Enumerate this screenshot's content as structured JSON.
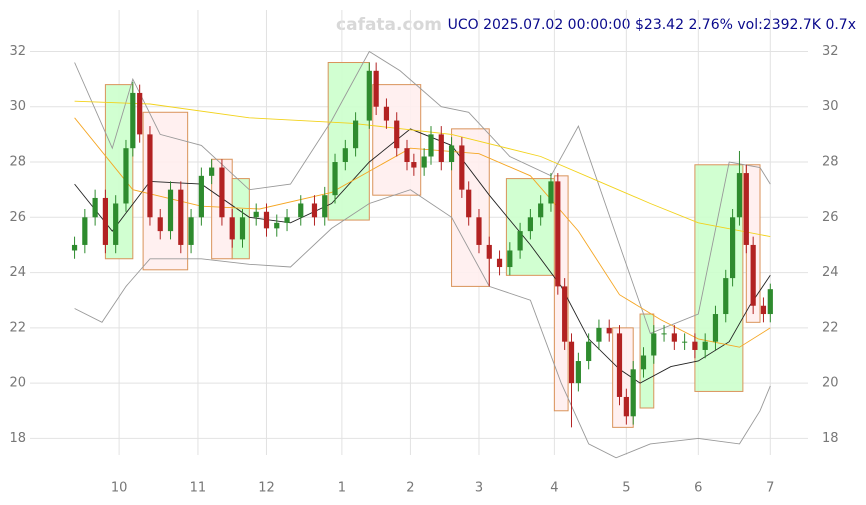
{
  "chart_data": {
    "type": "candlestick",
    "title": "UCO 2025.07.02 00:00:00 $23.42 2.76% vol:2392.7K 0.7x",
    "watermark": "cafata.com",
    "xlim": [
      -13,
      214
    ],
    "ylim": [
      17.4,
      33.5
    ],
    "xticks": [
      {
        "value": 13,
        "label": "10"
      },
      {
        "value": 36,
        "label": "11"
      },
      {
        "value": 56,
        "label": "12"
      },
      {
        "value": 78,
        "label": "1"
      },
      {
        "value": 98,
        "label": "2"
      },
      {
        "value": 118,
        "label": "3"
      },
      {
        "value": 140,
        "label": "4"
      },
      {
        "value": 161,
        "label": "5"
      },
      {
        "value": 182,
        "label": "6"
      },
      {
        "value": 203,
        "label": "7"
      }
    ],
    "yticks": [
      18,
      20,
      22,
      24,
      26,
      28,
      30,
      32
    ],
    "grid": true,
    "up_color": "#2e8b2e",
    "down_color": "#b22222",
    "x": [
      0,
      3,
      6,
      9,
      12,
      15,
      17,
      19,
      22,
      25,
      28,
      31,
      34,
      37,
      40,
      43,
      46,
      49,
      53,
      56,
      59,
      62,
      66,
      70,
      73,
      76,
      79,
      82,
      86,
      88,
      91,
      94,
      97,
      99,
      102,
      104,
      107,
      110,
      113,
      115,
      118,
      121,
      124,
      127,
      130,
      133,
      136,
      139,
      141,
      143,
      145,
      147,
      150,
      153,
      156,
      159,
      161,
      163,
      166,
      169,
      172,
      175,
      178,
      181,
      184,
      187,
      190,
      192,
      194,
      196,
      198,
      201,
      203
    ],
    "open": [
      24.8,
      25.0,
      26.0,
      26.7,
      25.0,
      26.5,
      28.5,
      30.5,
      29.0,
      26.0,
      25.5,
      27.0,
      25.0,
      26.0,
      27.5,
      27.8,
      26.0,
      25.2,
      26.0,
      26.2,
      25.6,
      25.8,
      26.0,
      26.5,
      26.0,
      26.8,
      28.0,
      28.5,
      29.5,
      31.3,
      30.0,
      29.5,
      28.5,
      28.0,
      27.8,
      28.2,
      29.0,
      28.0,
      28.6,
      27.0,
      26.0,
      25.0,
      24.5,
      24.2,
      24.8,
      25.5,
      26.0,
      26.5,
      27.3,
      23.5,
      21.5,
      20.0,
      20.8,
      21.5,
      22.0,
      21.8,
      19.5,
      18.8,
      20.5,
      21.0,
      21.8,
      21.8,
      21.5,
      21.5,
      21.2,
      21.5,
      22.5,
      23.8,
      26.0,
      27.6,
      25.0,
      22.8,
      22.5
    ],
    "high": [
      25.3,
      26.3,
      27.0,
      27.0,
      26.8,
      28.8,
      30.9,
      30.8,
      29.3,
      26.3,
      27.3,
      27.3,
      26.3,
      27.8,
      28.1,
      28.1,
      26.3,
      26.3,
      26.5,
      26.5,
      26.1,
      26.3,
      26.8,
      26.8,
      27.1,
      28.3,
      28.8,
      29.8,
      31.6,
      31.6,
      30.3,
      29.8,
      28.8,
      28.3,
      28.5,
      29.3,
      29.3,
      28.9,
      28.9,
      27.3,
      26.3,
      25.3,
      24.8,
      25.1,
      25.8,
      26.3,
      26.8,
      27.6,
      27.6,
      23.8,
      21.8,
      21.1,
      21.8,
      22.3,
      22.3,
      22.1,
      19.8,
      20.8,
      21.3,
      22.1,
      22.1,
      22.1,
      21.8,
      21.8,
      21.8,
      22.8,
      24.1,
      26.3,
      28.4,
      27.9,
      25.3,
      23.1,
      23.6
    ],
    "low": [
      24.5,
      24.7,
      25.7,
      24.7,
      24.7,
      26.2,
      28.2,
      28.7,
      25.7,
      25.2,
      25.2,
      24.7,
      24.7,
      25.7,
      27.2,
      25.7,
      24.9,
      24.9,
      25.7,
      25.3,
      25.3,
      25.5,
      25.7,
      25.7,
      25.7,
      26.5,
      27.7,
      28.2,
      29.2,
      29.7,
      29.2,
      28.2,
      27.7,
      27.5,
      27.5,
      27.9,
      27.7,
      27.7,
      26.7,
      25.7,
      24.7,
      23.5,
      23.9,
      23.9,
      24.5,
      25.2,
      25.7,
      26.2,
      23.2,
      21.2,
      18.4,
      19.7,
      20.5,
      21.2,
      21.5,
      19.2,
      18.5,
      18.5,
      20.2,
      20.7,
      21.5,
      21.2,
      21.2,
      20.9,
      20.9,
      21.2,
      22.2,
      23.5,
      25.7,
      24.7,
      22.5,
      22.2,
      22.2
    ],
    "close": [
      25.0,
      26.0,
      26.7,
      25.0,
      26.5,
      28.5,
      30.5,
      29.0,
      26.0,
      25.5,
      27.0,
      25.0,
      26.0,
      27.5,
      27.8,
      26.0,
      25.2,
      26.0,
      26.2,
      25.6,
      25.8,
      26.0,
      26.5,
      26.0,
      26.8,
      28.0,
      28.5,
      29.5,
      31.3,
      30.0,
      29.5,
      28.5,
      28.0,
      27.8,
      28.2,
      29.0,
      28.0,
      28.6,
      27.0,
      26.0,
      25.0,
      24.5,
      24.2,
      24.8,
      25.5,
      26.0,
      26.5,
      27.3,
      23.5,
      21.5,
      20.0,
      20.8,
      21.5,
      22.0,
      21.8,
      19.5,
      18.8,
      20.5,
      21.0,
      21.8,
      21.8,
      21.5,
      21.5,
      21.2,
      21.5,
      22.5,
      23.8,
      26.0,
      27.6,
      25.0,
      22.8,
      22.5,
      23.4
    ],
    "overlays": [
      {
        "color": "#999999",
        "x": [
          0,
          11,
          17,
          25,
          37,
          51,
          63,
          75,
          86,
          95,
          107,
          115,
          127,
          139,
          147,
          159,
          168,
          182,
          191,
          200,
          203
        ],
        "values": [
          31.6,
          28.5,
          31.0,
          29.0,
          28.6,
          27.0,
          27.2,
          29.5,
          32.0,
          31.3,
          30.0,
          29.8,
          28.2,
          27.5,
          29.3,
          25.0,
          21.8,
          22.5,
          28.0,
          27.8,
          27.2
        ]
      },
      {
        "color": "#999999",
        "x": [
          0,
          8,
          15,
          22,
          37,
          51,
          63,
          75,
          86,
          98,
          110,
          121,
          133,
          142,
          150,
          158,
          168,
          182,
          194,
          200,
          203
        ],
        "values": [
          22.7,
          22.2,
          23.5,
          24.5,
          24.5,
          24.3,
          24.2,
          25.6,
          26.5,
          27.0,
          26.0,
          23.5,
          23.0,
          20.0,
          17.8,
          17.3,
          17.8,
          18.0,
          17.8,
          19.0,
          19.9
        ]
      },
      {
        "color": "#222222",
        "x": [
          0,
          11,
          22,
          37,
          51,
          63,
          75,
          86,
          98,
          110,
          121,
          133,
          142,
          150,
          159,
          165,
          174,
          182,
          191,
          197,
          203
        ],
        "values": [
          27.2,
          25.5,
          27.3,
          27.2,
          26.0,
          25.8,
          26.5,
          28.0,
          29.2,
          28.6,
          26.8,
          25.0,
          23.5,
          21.6,
          20.5,
          20.0,
          20.6,
          20.8,
          21.5,
          22.8,
          23.9
        ]
      },
      {
        "color": "#f5a623",
        "x": [
          0,
          17,
          37,
          54,
          75,
          98,
          118,
          133,
          147,
          159,
          171,
          182,
          194,
          203
        ],
        "values": [
          29.6,
          27.0,
          26.4,
          26.3,
          26.9,
          28.5,
          28.3,
          27.5,
          25.5,
          23.2,
          22.3,
          21.6,
          21.3,
          22.0
        ]
      },
      {
        "color": "#f2d21b",
        "x": [
          0,
          22,
          51,
          81,
          110,
          136,
          153,
          168,
          182,
          203
        ],
        "values": [
          30.2,
          30.1,
          29.6,
          29.4,
          29.0,
          28.2,
          27.3,
          26.5,
          25.8,
          25.3
        ]
      }
    ],
    "zones": [
      {
        "color": "#ccffcc",
        "x0": 9,
        "x1": 17,
        "low": 24.5,
        "high": 30.8
      },
      {
        "color": "#ffeeee",
        "x0": 20,
        "x1": 33,
        "low": 24.1,
        "high": 29.8
      },
      {
        "color": "#ffeeee",
        "x0": 40,
        "x1": 46,
        "low": 24.5,
        "high": 28.1
      },
      {
        "color": "#ccffcc",
        "x0": 46,
        "x1": 51,
        "low": 24.5,
        "high": 27.4
      },
      {
        "color": "#ccffcc",
        "x0": 74,
        "x1": 86,
        "low": 25.9,
        "high": 31.6
      },
      {
        "color": "#ffeeee",
        "x0": 87,
        "x1": 101,
        "low": 26.8,
        "high": 30.8
      },
      {
        "color": "#ffeeee",
        "x0": 110,
        "x1": 121,
        "low": 23.5,
        "high": 29.2
      },
      {
        "color": "#ccffcc",
        "x0": 126,
        "x1": 140,
        "low": 23.9,
        "high": 27.4
      },
      {
        "color": "#ffeeee",
        "x0": 140,
        "x1": 144,
        "low": 19.0,
        "high": 27.5
      },
      {
        "color": "#ffeeee",
        "x0": 157,
        "x1": 163,
        "low": 18.4,
        "high": 22.0
      },
      {
        "color": "#ccffcc",
        "x0": 165,
        "x1": 169,
        "low": 19.1,
        "high": 22.5
      },
      {
        "color": "#ccffcc",
        "x0": 181,
        "x1": 195,
        "low": 19.7,
        "high": 27.9
      },
      {
        "color": "#ffeeee",
        "x0": 196,
        "x1": 200,
        "low": 22.2,
        "high": 27.9
      }
    ]
  }
}
